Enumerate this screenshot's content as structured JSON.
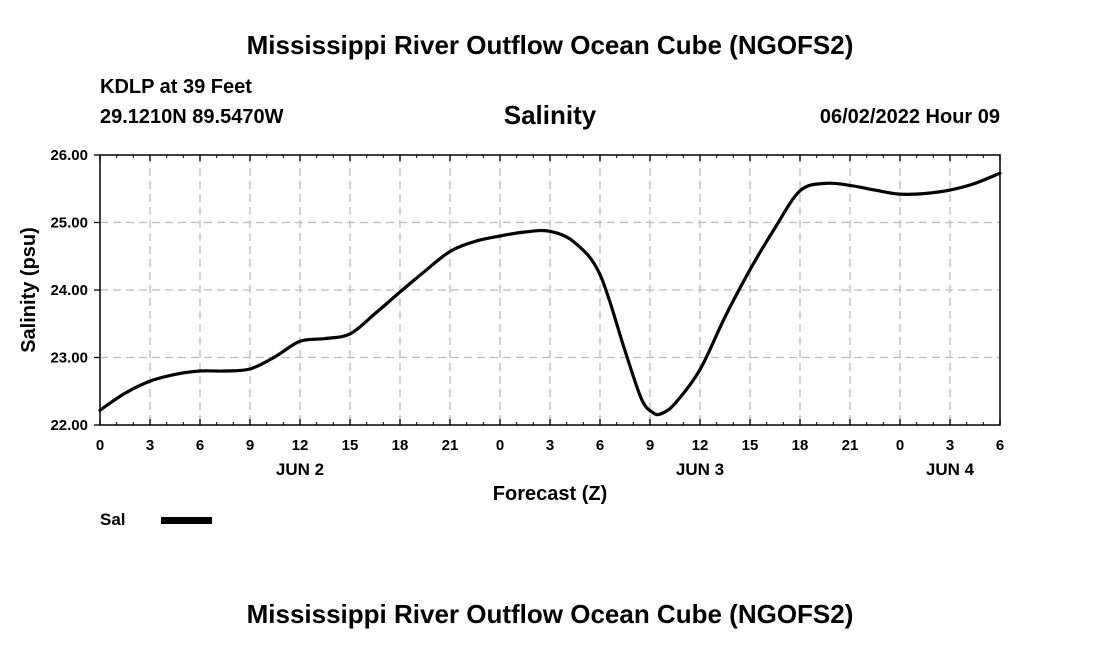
{
  "header": {
    "title": "Mississippi River Outflow Ocean Cube (NGOFS2)",
    "station": "KDLP at 39 Feet",
    "coords": "29.1210N  89.5470W",
    "subtitle": "Salinity",
    "timestamp": "06/02/2022 Hour 09"
  },
  "footer": {
    "title": "Mississippi River Outflow Ocean Cube (NGOFS2)"
  },
  "legend": {
    "label": "Sal",
    "color": "#000000"
  },
  "chart_data": {
    "type": "line",
    "title": "Salinity",
    "xlabel": "Forecast (Z)",
    "ylabel": "Salinity (psu)",
    "xlim": [
      0,
      54
    ],
    "ylim": [
      22,
      26
    ],
    "xticks": [
      0,
      3,
      6,
      9,
      12,
      15,
      18,
      21,
      24,
      27,
      30,
      33,
      36,
      39,
      42,
      45,
      48,
      51,
      54
    ],
    "xtick_labels": [
      "0",
      "3",
      "6",
      "9",
      "12",
      "15",
      "18",
      "21",
      "0",
      "3",
      "6",
      "9",
      "12",
      "15",
      "18",
      "21",
      "0",
      "3",
      "6"
    ],
    "yticks": [
      22,
      23,
      24,
      25,
      26
    ],
    "ytick_labels": [
      "22.00",
      "23.00",
      "24.00",
      "25.00",
      "26.00"
    ],
    "day_labels": [
      {
        "x": 12,
        "label": "JUN 2"
      },
      {
        "x": 36,
        "label": "JUN 3"
      },
      {
        "x": 51,
        "label": "JUN 4"
      }
    ],
    "grid": true,
    "series": [
      {
        "name": "Sal",
        "x": [
          0,
          1.5,
          3,
          4.5,
          6,
          7.5,
          9,
          10.5,
          12,
          13.5,
          15,
          16.5,
          18,
          19.5,
          21,
          22.5,
          24,
          25.5,
          27,
          28.5,
          30,
          31.5,
          32.5,
          33.2,
          33.7,
          34.5,
          36,
          37.5,
          39,
          40.5,
          42,
          43.5,
          45,
          46.5,
          48,
          49.5,
          51,
          52.5,
          54
        ],
        "y": [
          22.22,
          22.47,
          22.65,
          22.75,
          22.8,
          22.8,
          22.83,
          23.01,
          23.24,
          23.28,
          23.35,
          23.65,
          23.97,
          24.28,
          24.57,
          24.72,
          24.8,
          24.86,
          24.87,
          24.7,
          24.23,
          23.1,
          22.38,
          22.18,
          22.17,
          22.32,
          22.82,
          23.6,
          24.3,
          24.92,
          25.47,
          25.58,
          25.55,
          25.48,
          25.42,
          25.43,
          25.48,
          25.58,
          25.73
        ]
      }
    ]
  }
}
